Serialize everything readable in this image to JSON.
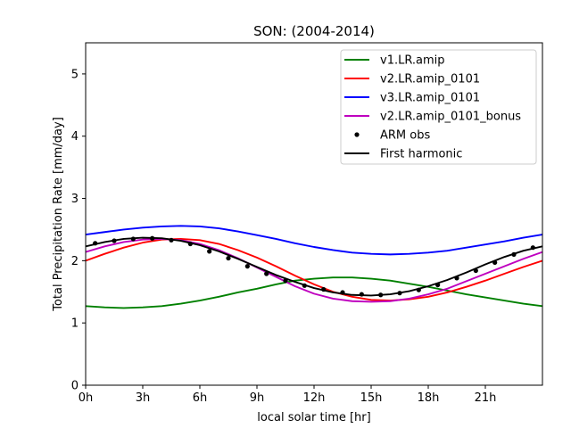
{
  "chart_data": {
    "type": "line",
    "title": "SON: (2004-2014)",
    "xlabel": "local solar time [hr]",
    "ylabel": "Total Precipitation Rate [mm/day]",
    "xlim": [
      0,
      24
    ],
    "ylim": [
      0,
      5.5
    ],
    "xticks": [
      0,
      3,
      6,
      9,
      12,
      15,
      18,
      21
    ],
    "xtick_labels": [
      "0h",
      "3h",
      "6h",
      "9h",
      "12h",
      "15h",
      "18h",
      "21h"
    ],
    "yticks": [
      0,
      1,
      2,
      3,
      4,
      5
    ],
    "ytick_labels": [
      "0",
      "1",
      "2",
      "3",
      "4",
      "5"
    ],
    "grid": false,
    "legend_position": "top-right",
    "x": [
      0,
      1,
      2,
      3,
      4,
      5,
      6,
      7,
      8,
      9,
      10,
      11,
      12,
      13,
      14,
      15,
      16,
      17,
      18,
      19,
      20,
      21,
      22,
      23,
      24
    ],
    "series": [
      {
        "name": "v1.LR.amip",
        "color": "#008000",
        "style": "line",
        "values": [
          1.27,
          1.25,
          1.24,
          1.25,
          1.27,
          1.31,
          1.36,
          1.42,
          1.49,
          1.55,
          1.62,
          1.68,
          1.71,
          1.73,
          1.73,
          1.71,
          1.68,
          1.63,
          1.58,
          1.52,
          1.46,
          1.41,
          1.36,
          1.31,
          1.27
        ]
      },
      {
        "name": "v2.LR.amip_0101",
        "color": "#ff0000",
        "style": "line",
        "values": [
          2.0,
          2.11,
          2.21,
          2.29,
          2.34,
          2.35,
          2.33,
          2.27,
          2.17,
          2.05,
          1.91,
          1.76,
          1.62,
          1.5,
          1.42,
          1.37,
          1.36,
          1.38,
          1.42,
          1.49,
          1.58,
          1.68,
          1.79,
          1.9,
          2.0
        ]
      },
      {
        "name": "v3.LR.amip_0101",
        "color": "#0000ff",
        "style": "line",
        "values": [
          2.42,
          2.46,
          2.5,
          2.53,
          2.55,
          2.56,
          2.55,
          2.52,
          2.47,
          2.41,
          2.35,
          2.28,
          2.22,
          2.17,
          2.13,
          2.11,
          2.1,
          2.11,
          2.13,
          2.16,
          2.21,
          2.26,
          2.31,
          2.37,
          2.42
        ]
      },
      {
        "name": "v2.LR.amip_0101_bonus",
        "color": "#bf00bf",
        "style": "line",
        "values": [
          2.14,
          2.23,
          2.3,
          2.34,
          2.35,
          2.33,
          2.27,
          2.17,
          2.04,
          1.89,
          1.74,
          1.59,
          1.47,
          1.39,
          1.35,
          1.34,
          1.35,
          1.39,
          1.46,
          1.55,
          1.67,
          1.79,
          1.91,
          2.03,
          2.14
        ]
      },
      {
        "name": "ARM obs",
        "color": "#000000",
        "style": "dots",
        "x": [
          0.5,
          1.5,
          2.5,
          3.5,
          4.5,
          5.5,
          6.5,
          7.5,
          8.5,
          9.5,
          10.5,
          11.5,
          12.5,
          13.5,
          14.5,
          15.5,
          16.5,
          17.5,
          18.5,
          19.5,
          20.5,
          21.5,
          22.5,
          23.5
        ],
        "values": [
          2.28,
          2.32,
          2.35,
          2.36,
          2.33,
          2.27,
          2.15,
          2.04,
          1.91,
          1.79,
          1.68,
          1.6,
          1.54,
          1.49,
          1.46,
          1.45,
          1.48,
          1.53,
          1.61,
          1.72,
          1.84,
          1.97,
          2.1,
          2.21
        ]
      },
      {
        "name": "First harmonic",
        "color": "#000000",
        "style": "line",
        "values": [
          2.23,
          2.3,
          2.35,
          2.37,
          2.36,
          2.32,
          2.25,
          2.15,
          2.03,
          1.9,
          1.77,
          1.66,
          1.56,
          1.49,
          1.45,
          1.44,
          1.46,
          1.51,
          1.59,
          1.69,
          1.81,
          1.94,
          2.06,
          2.16,
          2.23
        ]
      }
    ]
  }
}
